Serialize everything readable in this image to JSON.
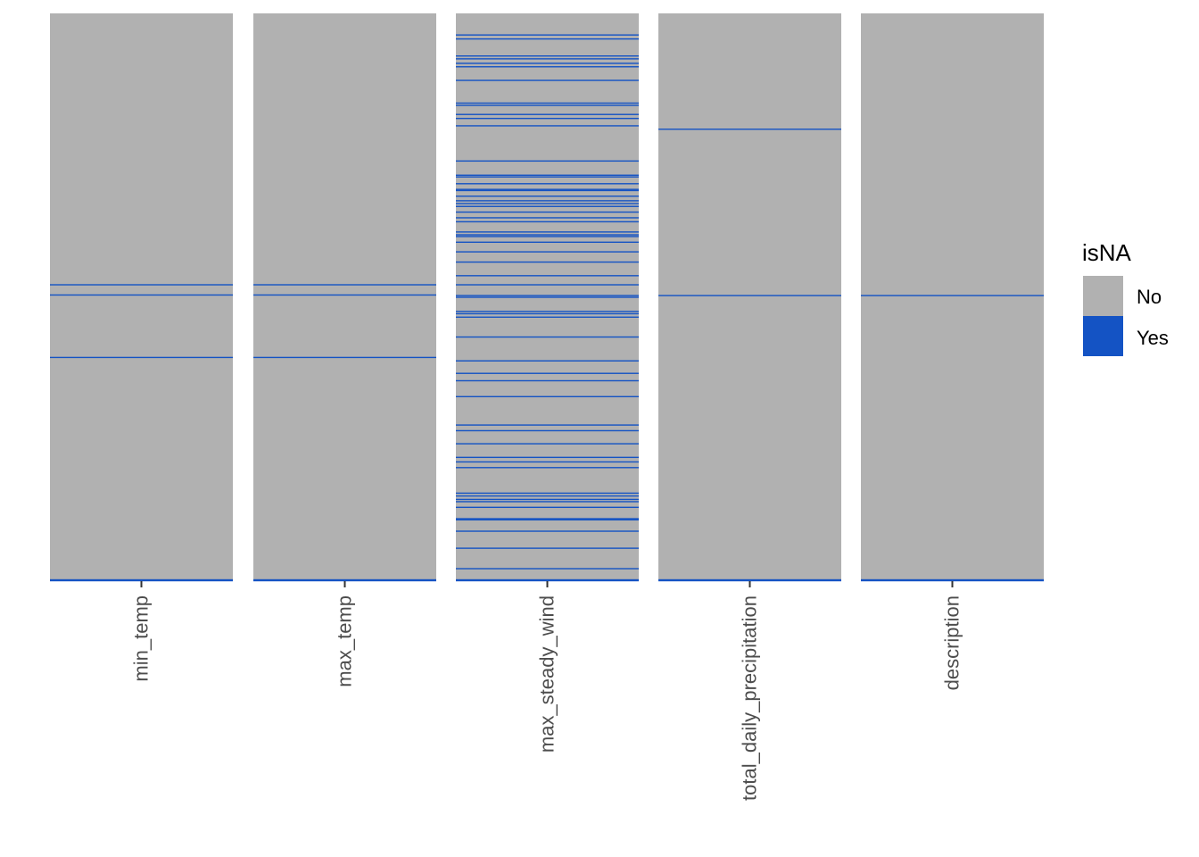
{
  "chart_data": {
    "type": "heatmap",
    "title": "",
    "xlabel": "",
    "ylabel": "",
    "categories": [
      "min_temp",
      "max_temp",
      "max_steady_wind",
      "total_daily_precipitation",
      "description"
    ],
    "y_range_fraction": [
      0,
      1
    ],
    "missing_rows_fraction": [
      {
        "name": "min_temp",
        "missing": [
          0.478,
          0.496,
          0.606,
          1.0
        ]
      },
      {
        "name": "max_temp",
        "missing": [
          0.478,
          0.496,
          0.606,
          1.0
        ]
      },
      {
        "name": "max_steady_wind",
        "missing": [
          0.038,
          0.045,
          0.075,
          0.08,
          0.088,
          0.094,
          0.118,
          0.158,
          0.162,
          0.178,
          0.185,
          0.198,
          0.26,
          0.285,
          0.288,
          0.3,
          0.31,
          0.312,
          0.322,
          0.33,
          0.335,
          0.34,
          0.35,
          0.36,
          0.367,
          0.385,
          0.39,
          0.393,
          0.403,
          0.42,
          0.438,
          0.462,
          0.478,
          0.497,
          0.5,
          0.525,
          0.529,
          0.535,
          0.57,
          0.612,
          0.634,
          0.647,
          0.675,
          0.725,
          0.735,
          0.758,
          0.782,
          0.79,
          0.8,
          0.845,
          0.85,
          0.856,
          0.86,
          0.87,
          0.89,
          0.892,
          0.912,
          0.942,
          0.978,
          0.998,
          1.0
        ]
      },
      {
        "name": "total_daily_precipitation",
        "missing": [
          0.204,
          0.497,
          1.0
        ]
      },
      {
        "name": "description",
        "missing": [
          0.497,
          1.0
        ]
      }
    ],
    "legend": {
      "title": "isNA",
      "position": "right",
      "entries": [
        {
          "label": "No",
          "color": "#b1b1b1"
        },
        {
          "label": "Yes",
          "color": "#1453c4"
        }
      ]
    },
    "colors": {
      "present": "#b1b1b1",
      "missing": "#1453c4"
    },
    "grid": false
  }
}
